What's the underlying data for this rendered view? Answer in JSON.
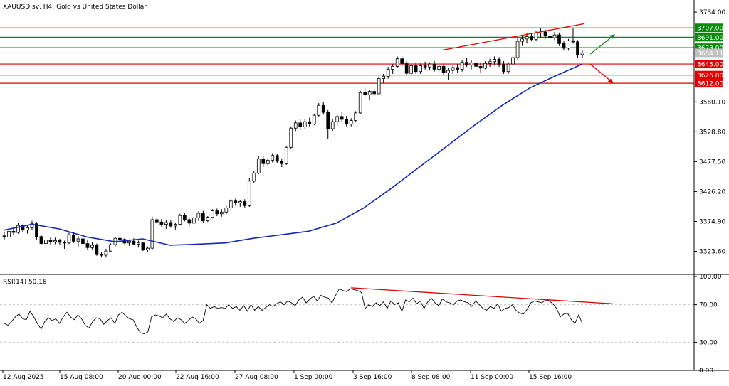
{
  "header": {
    "title": "XAUUSD.sv, H4:  Gold vs United States Dollar",
    "rsi_label": "RSI(14) 50.18"
  },
  "colors": {
    "background": "#ffffff",
    "candle_up": "#000000",
    "candle_up_fill": "#ffffff",
    "candle_down": "#000000",
    "ma_line": "#1428b4",
    "support_line": "#e00000",
    "resistance_line": "#0a8a0a",
    "trend_line": "#e00000",
    "up_arrow": "#1a8a1a",
    "down_arrow": "#e00000",
    "rsi_line": "#000000",
    "grid": "#c8c8c8"
  },
  "chart_data": [
    {
      "type": "candlestick",
      "title": "XAUUSD.sv, H4:  Gold vs United States Dollar",
      "x_tick_labels": [
        "12 Aug 2025",
        "15 Aug 08:00",
        "20 Aug 00:00",
        "22 Aug 16:00",
        "27 Aug 08:00",
        "1 Sep 00:00",
        "3 Sep 16:00",
        "8 Sep 08:00",
        "11 Sep 00:00",
        "15 Sep 16:00"
      ],
      "y_tick_labels": [
        "3734.00",
        "3580.10",
        "3528.80",
        "3477.50",
        "3426.20",
        "3374.90",
        "3323.60"
      ],
      "ylim": [
        3284,
        3750
      ],
      "price_levels": [
        {
          "label": "3707.00",
          "value": 3707,
          "kind": "resistance"
        },
        {
          "label": "3691.00",
          "value": 3691,
          "kind": "resistance"
        },
        {
          "label": "3673.00",
          "value": 3673,
          "kind": "resistance"
        },
        {
          "label": "3645.00",
          "value": 3645,
          "kind": "support"
        },
        {
          "label": "3626.00",
          "value": 3626,
          "kind": "support"
        },
        {
          "label": "3612.00",
          "value": 3612,
          "kind": "support"
        }
      ],
      "current_price_label": "3664.11",
      "current_price": 3664.11,
      "candles": [
        {
          "o": 3350,
          "h": 3356,
          "l": 3343,
          "c": 3348
        },
        {
          "o": 3348,
          "h": 3362,
          "l": 3346,
          "c": 3358
        },
        {
          "o": 3358,
          "h": 3366,
          "l": 3352,
          "c": 3356
        },
        {
          "o": 3356,
          "h": 3372,
          "l": 3354,
          "c": 3368
        },
        {
          "o": 3368,
          "h": 3370,
          "l": 3356,
          "c": 3360
        },
        {
          "o": 3360,
          "h": 3369,
          "l": 3354,
          "c": 3364
        },
        {
          "o": 3364,
          "h": 3376,
          "l": 3360,
          "c": 3371
        },
        {
          "o": 3371,
          "h": 3374,
          "l": 3344,
          "c": 3349
        },
        {
          "o": 3349,
          "h": 3351,
          "l": 3334,
          "c": 3337
        },
        {
          "o": 3337,
          "h": 3346,
          "l": 3330,
          "c": 3343
        },
        {
          "o": 3343,
          "h": 3348,
          "l": 3334,
          "c": 3340
        },
        {
          "o": 3340,
          "h": 3347,
          "l": 3336,
          "c": 3342
        },
        {
          "o": 3342,
          "h": 3345,
          "l": 3335,
          "c": 3339
        },
        {
          "o": 3339,
          "h": 3342,
          "l": 3328,
          "c": 3338
        },
        {
          "o": 3338,
          "h": 3356,
          "l": 3336,
          "c": 3352
        },
        {
          "o": 3352,
          "h": 3357,
          "l": 3338,
          "c": 3341
        },
        {
          "o": 3341,
          "h": 3350,
          "l": 3332,
          "c": 3345
        },
        {
          "o": 3345,
          "h": 3350,
          "l": 3333,
          "c": 3337
        },
        {
          "o": 3337,
          "h": 3344,
          "l": 3326,
          "c": 3330
        },
        {
          "o": 3330,
          "h": 3340,
          "l": 3327,
          "c": 3334
        },
        {
          "o": 3334,
          "h": 3337,
          "l": 3316,
          "c": 3318
        },
        {
          "o": 3318,
          "h": 3322,
          "l": 3313,
          "c": 3317
        },
        {
          "o": 3317,
          "h": 3328,
          "l": 3313,
          "c": 3324
        },
        {
          "o": 3324,
          "h": 3337,
          "l": 3322,
          "c": 3335
        },
        {
          "o": 3335,
          "h": 3348,
          "l": 3332,
          "c": 3346
        },
        {
          "o": 3346,
          "h": 3350,
          "l": 3338,
          "c": 3344
        },
        {
          "o": 3344,
          "h": 3346,
          "l": 3336,
          "c": 3338
        },
        {
          "o": 3338,
          "h": 3344,
          "l": 3333,
          "c": 3341
        },
        {
          "o": 3341,
          "h": 3346,
          "l": 3334,
          "c": 3336
        },
        {
          "o": 3336,
          "h": 3342,
          "l": 3330,
          "c": 3338
        },
        {
          "o": 3338,
          "h": 3340,
          "l": 3324,
          "c": 3326
        },
        {
          "o": 3326,
          "h": 3332,
          "l": 3322,
          "c": 3329
        },
        {
          "o": 3329,
          "h": 3383,
          "l": 3327,
          "c": 3378
        },
        {
          "o": 3378,
          "h": 3382,
          "l": 3370,
          "c": 3374
        },
        {
          "o": 3374,
          "h": 3379,
          "l": 3366,
          "c": 3370
        },
        {
          "o": 3370,
          "h": 3378,
          "l": 3362,
          "c": 3373
        },
        {
          "o": 3373,
          "h": 3378,
          "l": 3364,
          "c": 3367
        },
        {
          "o": 3367,
          "h": 3373,
          "l": 3361,
          "c": 3370
        },
        {
          "o": 3370,
          "h": 3388,
          "l": 3368,
          "c": 3385
        },
        {
          "o": 3385,
          "h": 3390,
          "l": 3375,
          "c": 3378
        },
        {
          "o": 3378,
          "h": 3381,
          "l": 3367,
          "c": 3372
        },
        {
          "o": 3372,
          "h": 3384,
          "l": 3370,
          "c": 3381
        },
        {
          "o": 3381,
          "h": 3392,
          "l": 3376,
          "c": 3389
        },
        {
          "o": 3389,
          "h": 3393,
          "l": 3372,
          "c": 3376
        },
        {
          "o": 3376,
          "h": 3384,
          "l": 3374,
          "c": 3382
        },
        {
          "o": 3382,
          "h": 3396,
          "l": 3380,
          "c": 3393
        },
        {
          "o": 3393,
          "h": 3397,
          "l": 3384,
          "c": 3388
        },
        {
          "o": 3388,
          "h": 3396,
          "l": 3383,
          "c": 3391
        },
        {
          "o": 3391,
          "h": 3402,
          "l": 3387,
          "c": 3398
        },
        {
          "o": 3398,
          "h": 3413,
          "l": 3395,
          "c": 3410
        },
        {
          "o": 3410,
          "h": 3414,
          "l": 3402,
          "c": 3407
        },
        {
          "o": 3407,
          "h": 3412,
          "l": 3400,
          "c": 3409
        },
        {
          "o": 3409,
          "h": 3413,
          "l": 3398,
          "c": 3402
        },
        {
          "o": 3402,
          "h": 3450,
          "l": 3400,
          "c": 3444
        },
        {
          "o": 3444,
          "h": 3462,
          "l": 3441,
          "c": 3458
        },
        {
          "o": 3458,
          "h": 3487,
          "l": 3456,
          "c": 3482
        },
        {
          "o": 3482,
          "h": 3488,
          "l": 3468,
          "c": 3474
        },
        {
          "o": 3474,
          "h": 3484,
          "l": 3470,
          "c": 3480
        },
        {
          "o": 3480,
          "h": 3492,
          "l": 3476,
          "c": 3488
        },
        {
          "o": 3488,
          "h": 3491,
          "l": 3475,
          "c": 3478
        },
        {
          "o": 3478,
          "h": 3483,
          "l": 3468,
          "c": 3474
        },
        {
          "o": 3474,
          "h": 3505,
          "l": 3472,
          "c": 3502
        },
        {
          "o": 3502,
          "h": 3538,
          "l": 3500,
          "c": 3535
        },
        {
          "o": 3535,
          "h": 3548,
          "l": 3530,
          "c": 3544
        },
        {
          "o": 3544,
          "h": 3550,
          "l": 3532,
          "c": 3537
        },
        {
          "o": 3537,
          "h": 3550,
          "l": 3534,
          "c": 3546
        },
        {
          "o": 3546,
          "h": 3553,
          "l": 3538,
          "c": 3542
        },
        {
          "o": 3542,
          "h": 3560,
          "l": 3540,
          "c": 3557
        },
        {
          "o": 3557,
          "h": 3578,
          "l": 3555,
          "c": 3574
        },
        {
          "o": 3574,
          "h": 3580,
          "l": 3558,
          "c": 3562
        },
        {
          "o": 3562,
          "h": 3566,
          "l": 3516,
          "c": 3534
        },
        {
          "o": 3534,
          "h": 3550,
          "l": 3530,
          "c": 3546
        },
        {
          "o": 3546,
          "h": 3559,
          "l": 3540,
          "c": 3555
        },
        {
          "o": 3555,
          "h": 3562,
          "l": 3546,
          "c": 3550
        },
        {
          "o": 3550,
          "h": 3556,
          "l": 3538,
          "c": 3542
        },
        {
          "o": 3542,
          "h": 3552,
          "l": 3538,
          "c": 3548
        },
        {
          "o": 3548,
          "h": 3564,
          "l": 3545,
          "c": 3561
        },
        {
          "o": 3561,
          "h": 3599,
          "l": 3559,
          "c": 3596
        },
        {
          "o": 3596,
          "h": 3604,
          "l": 3588,
          "c": 3592
        },
        {
          "o": 3592,
          "h": 3601,
          "l": 3584,
          "c": 3598
        },
        {
          "o": 3598,
          "h": 3603,
          "l": 3590,
          "c": 3594
        },
        {
          "o": 3594,
          "h": 3624,
          "l": 3592,
          "c": 3620
        },
        {
          "o": 3620,
          "h": 3628,
          "l": 3612,
          "c": 3624
        },
        {
          "o": 3624,
          "h": 3640,
          "l": 3620,
          "c": 3636
        },
        {
          "o": 3636,
          "h": 3645,
          "l": 3628,
          "c": 3641
        },
        {
          "o": 3641,
          "h": 3658,
          "l": 3638,
          "c": 3654
        },
        {
          "o": 3654,
          "h": 3659,
          "l": 3640,
          "c": 3646
        },
        {
          "o": 3646,
          "h": 3650,
          "l": 3625,
          "c": 3629
        },
        {
          "o": 3629,
          "h": 3646,
          "l": 3626,
          "c": 3642
        },
        {
          "o": 3642,
          "h": 3648,
          "l": 3628,
          "c": 3632
        },
        {
          "o": 3632,
          "h": 3646,
          "l": 3628,
          "c": 3642
        },
        {
          "o": 3642,
          "h": 3649,
          "l": 3635,
          "c": 3640
        },
        {
          "o": 3640,
          "h": 3648,
          "l": 3634,
          "c": 3645
        },
        {
          "o": 3645,
          "h": 3650,
          "l": 3632,
          "c": 3636
        },
        {
          "o": 3636,
          "h": 3644,
          "l": 3630,
          "c": 3641
        },
        {
          "o": 3641,
          "h": 3646,
          "l": 3626,
          "c": 3630
        },
        {
          "o": 3630,
          "h": 3638,
          "l": 3618,
          "c": 3634
        },
        {
          "o": 3634,
          "h": 3642,
          "l": 3628,
          "c": 3639
        },
        {
          "o": 3639,
          "h": 3645,
          "l": 3630,
          "c": 3636
        },
        {
          "o": 3636,
          "h": 3652,
          "l": 3632,
          "c": 3648
        },
        {
          "o": 3648,
          "h": 3655,
          "l": 3640,
          "c": 3643
        },
        {
          "o": 3643,
          "h": 3651,
          "l": 3636,
          "c": 3647
        },
        {
          "o": 3647,
          "h": 3652,
          "l": 3638,
          "c": 3641
        },
        {
          "o": 3641,
          "h": 3648,
          "l": 3630,
          "c": 3638
        },
        {
          "o": 3638,
          "h": 3650,
          "l": 3636,
          "c": 3646
        },
        {
          "o": 3646,
          "h": 3654,
          "l": 3640,
          "c": 3649
        },
        {
          "o": 3649,
          "h": 3658,
          "l": 3644,
          "c": 3653
        },
        {
          "o": 3653,
          "h": 3657,
          "l": 3640,
          "c": 3644
        },
        {
          "o": 3644,
          "h": 3650,
          "l": 3628,
          "c": 3632
        },
        {
          "o": 3632,
          "h": 3648,
          "l": 3628,
          "c": 3645
        },
        {
          "o": 3645,
          "h": 3660,
          "l": 3642,
          "c": 3656
        },
        {
          "o": 3656,
          "h": 3690,
          "l": 3652,
          "c": 3684
        },
        {
          "o": 3684,
          "h": 3693,
          "l": 3676,
          "c": 3688
        },
        {
          "o": 3688,
          "h": 3698,
          "l": 3680,
          "c": 3692
        },
        {
          "o": 3692,
          "h": 3697,
          "l": 3684,
          "c": 3687
        },
        {
          "o": 3687,
          "h": 3702,
          "l": 3684,
          "c": 3698
        },
        {
          "o": 3698,
          "h": 3707,
          "l": 3690,
          "c": 3700
        },
        {
          "o": 3700,
          "h": 3704,
          "l": 3688,
          "c": 3693
        },
        {
          "o": 3693,
          "h": 3698,
          "l": 3684,
          "c": 3690
        },
        {
          "o": 3690,
          "h": 3700,
          "l": 3686,
          "c": 3695
        },
        {
          "o": 3695,
          "h": 3699,
          "l": 3676,
          "c": 3680
        },
        {
          "o": 3680,
          "h": 3684,
          "l": 3668,
          "c": 3672
        },
        {
          "o": 3672,
          "h": 3688,
          "l": 3668,
          "c": 3685
        },
        {
          "o": 3685,
          "h": 3707,
          "l": 3680,
          "c": 3683
        },
        {
          "o": 3683,
          "h": 3686,
          "l": 3656,
          "c": 3661
        },
        {
          "o": 3661,
          "h": 3668,
          "l": 3656,
          "c": 3664
        }
      ],
      "moving_average": [
        [
          0,
          3360
        ],
        [
          10,
          3370
        ],
        [
          20,
          3362
        ],
        [
          30,
          3348
        ],
        [
          40,
          3340
        ],
        [
          50,
          3345
        ],
        [
          60,
          3334
        ],
        [
          70,
          3336
        ],
        [
          80,
          3338
        ],
        [
          90,
          3346
        ],
        [
          100,
          3352
        ],
        [
          110,
          3358
        ],
        [
          120,
          3372
        ],
        [
          130,
          3398
        ],
        [
          140,
          3432
        ],
        [
          150,
          3468
        ],
        [
          160,
          3504
        ],
        [
          170,
          3540
        ],
        [
          180,
          3574
        ],
        [
          190,
          3604
        ],
        [
          200,
          3626
        ],
        [
          209,
          3645
        ]
      ],
      "ma_x_scale_candles": 127
    },
    {
      "type": "line",
      "title": "RSI(14) 50.18",
      "y_tick_labels": [
        "100.00",
        "70.00",
        "30.00",
        "0.00"
      ],
      "ylim": [
        0,
        100
      ],
      "levels": [
        70,
        30
      ],
      "values": [
        50,
        48,
        52,
        57,
        60,
        55,
        54,
        63,
        57,
        50,
        44,
        52,
        56,
        53,
        55,
        50,
        57,
        62,
        57,
        54,
        59,
        55,
        48,
        45,
        52,
        56,
        55,
        49,
        53,
        56,
        50,
        59,
        62,
        58,
        55,
        54,
        46,
        40,
        39,
        41,
        57,
        59,
        58,
        56,
        60,
        55,
        52,
        56,
        54,
        50,
        53,
        57,
        55,
        50,
        53,
        70,
        66,
        68,
        66,
        67,
        66,
        70,
        66,
        68,
        64,
        69,
        63,
        70,
        64,
        68,
        64,
        67,
        70,
        68,
        71,
        73,
        70,
        74,
        72,
        69,
        75,
        78,
        72,
        76,
        79,
        74,
        80,
        78,
        77,
        72,
        80,
        87,
        85,
        84,
        87,
        86,
        85,
        83,
        66,
        70,
        68,
        72,
        69,
        73,
        66,
        74,
        70,
        72,
        63,
        75,
        73,
        77,
        71,
        74,
        66,
        73,
        77,
        72,
        69,
        76,
        73,
        72,
        70,
        74,
        75,
        73,
        72,
        68,
        74,
        70,
        66,
        64,
        68,
        66,
        71,
        63,
        66,
        67,
        70,
        64,
        61,
        60,
        65,
        72,
        74,
        73,
        72,
        75,
        74,
        71,
        66,
        57,
        60,
        61,
        54,
        50,
        59,
        50
      ],
      "trend_line_label": ""
    }
  ]
}
